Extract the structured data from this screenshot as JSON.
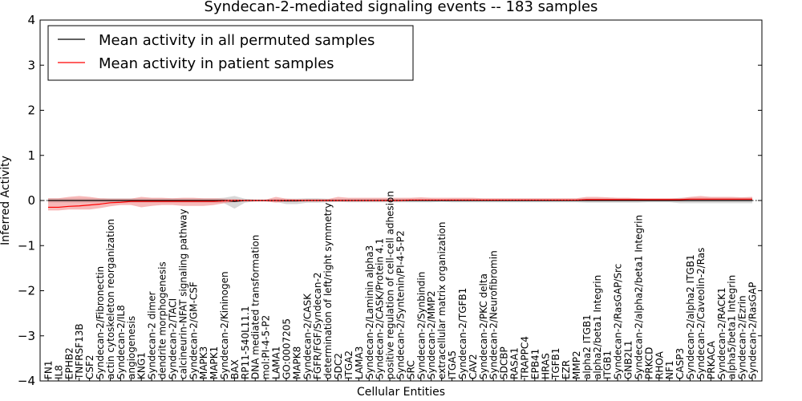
{
  "chart_data": {
    "type": "line",
    "title": "Syndecan-2-mediated signaling events -- 183 samples",
    "xlabel": "Cellular Entities",
    "ylabel": "Inferred Activity",
    "ylim": [
      -4,
      4
    ],
    "yticks": [
      "−4",
      "−3",
      "−2",
      "−1",
      "0",
      "1",
      "2",
      "3",
      "4"
    ],
    "ytick_values": [
      -4,
      -3,
      -2,
      -1,
      0,
      1,
      2,
      3,
      4
    ],
    "legend": {
      "location": "upper-left",
      "entries": [
        {
          "label": "Mean activity in all permuted samples",
          "color": "#000000"
        },
        {
          "label": "Mean activity in patient samples",
          "color": "#ff0000"
        }
      ]
    },
    "categories": [
      "FN1",
      "IL8",
      "EPHB2",
      "TNFRSF13B",
      "CSF2",
      "Syndecan-2/Fibronectin",
      "actin cytoskeleton reorganization",
      "Syndecan-2/IL8",
      "angiogenesis",
      "KNG1",
      "Syndecan-2 dimer",
      "dendrite morphogenesis",
      "Syndecan-2/TACI",
      "calcineurin-NFAT signaling pathway",
      "Syndecan-2/GM-CSF",
      "MAPK3",
      "MAPK1",
      "Syndecan-2/Kininogen",
      "BAX",
      "RP11-540L11.1",
      "DNA mediated transformation",
      "mol:PI-4-5-P2",
      "LAMA1",
      "GO:0007205",
      "MAPK8",
      "Syndecan-2/CASK",
      "FGFR/FGF/Syndecan-2",
      "determination of left/right symmetry",
      "SDC2",
      "ITGA2",
      "LAMA3",
      "Syndecan-2/Laminin alpha3",
      "Syndecan-2/CASK/Protein 4.1",
      "positive regulation of cell-cell adhesion",
      "Syndecan-2/Syntenin/PI-4-5-P2",
      "SRC",
      "Syndecan-2/Synbindin",
      "Syndecan-2/MMP2",
      "extracellular matrix organization",
      "ITGA5",
      "Syndecan-2/TGFB1",
      "CAV2",
      "Syndecan-2/PKC delta",
      "Syndecan-2/Neurofibromin",
      "SDCBP",
      "RASA1",
      "TRAPPC4",
      "EPB41",
      "HRAS",
      "TGFB1",
      "EZR",
      "MMP2",
      "alpha2 ITGB1",
      "alpha2/beta1 Integrin",
      "ITGB1",
      "Syndecan-2/RasGAP/Src",
      "GNB2L1",
      "Syndecan-2/alpha2/beta1 Integrin",
      "PRKCD",
      "RHOA",
      "NF1",
      "CASP3",
      "Syndecan-2/alpha2 ITGB1",
      "Syndecan-2/Caveolin-2/Ras",
      "PRKACA",
      "Syndecan-2/RACK1",
      "alpha5/beta1 Integrin",
      "Syndecan-2/Ezrin",
      "Syndecan-2/RasGAP"
    ],
    "series": [
      {
        "name": "Mean activity in all permuted samples",
        "color": "#000000",
        "values": [
          0.0,
          0.0,
          0.0,
          0.0,
          0.0,
          0.0,
          0.0,
          0.0,
          0.0,
          0.0,
          0.0,
          0.0,
          0.0,
          0.0,
          0.0,
          0.0,
          0.0,
          0.0,
          -0.02,
          0.0,
          0.0,
          0.0,
          0.0,
          -0.01,
          -0.01,
          0.0,
          0.0,
          0.0,
          0.0,
          0.0,
          0.0,
          0.0,
          0.0,
          0.0,
          0.0,
          0.0,
          0.0,
          0.0,
          0.0,
          0.0,
          0.0,
          0.0,
          0.0,
          0.0,
          0.0,
          0.0,
          0.0,
          0.0,
          0.0,
          0.0,
          0.0,
          0.0,
          0.0,
          0.0,
          0.0,
          0.0,
          0.0,
          0.0,
          0.0,
          0.0,
          0.0,
          0.0,
          0.0,
          0.0,
          0.0,
          0.0,
          0.0,
          0.0,
          0.0
        ],
        "band_low": [
          -0.05,
          -0.05,
          -0.05,
          -0.05,
          -0.05,
          -0.05,
          -0.05,
          -0.05,
          -0.05,
          -0.05,
          -0.05,
          -0.05,
          -0.05,
          -0.05,
          -0.05,
          -0.05,
          -0.05,
          -0.06,
          -0.18,
          -0.05,
          -0.02,
          -0.02,
          -0.03,
          -0.08,
          -0.08,
          -0.05,
          -0.05,
          -0.04,
          -0.03,
          -0.04,
          -0.04,
          -0.04,
          -0.04,
          -0.04,
          -0.04,
          -0.04,
          -0.04,
          -0.04,
          -0.03,
          -0.04,
          -0.04,
          -0.04,
          -0.04,
          -0.04,
          -0.04,
          -0.04,
          -0.04,
          -0.04,
          -0.04,
          -0.04,
          -0.04,
          -0.04,
          -0.05,
          -0.05,
          -0.05,
          -0.05,
          -0.05,
          -0.05,
          -0.04,
          -0.04,
          -0.04,
          -0.06,
          -0.06,
          -0.06,
          -0.06,
          -0.06,
          -0.06,
          -0.06,
          -0.06
        ],
        "band_high": [
          0.05,
          0.05,
          0.05,
          0.05,
          0.05,
          0.05,
          0.05,
          0.05,
          0.05,
          0.05,
          0.05,
          0.05,
          0.05,
          0.05,
          0.05,
          0.05,
          0.05,
          0.06,
          0.1,
          0.04,
          0.02,
          0.02,
          0.03,
          0.04,
          0.04,
          0.05,
          0.05,
          0.04,
          0.03,
          0.04,
          0.04,
          0.04,
          0.04,
          0.04,
          0.04,
          0.04,
          0.04,
          0.04,
          0.03,
          0.04,
          0.04,
          0.04,
          0.04,
          0.04,
          0.04,
          0.04,
          0.04,
          0.04,
          0.04,
          0.04,
          0.04,
          0.04,
          0.05,
          0.05,
          0.05,
          0.05,
          0.05,
          0.05,
          0.04,
          0.04,
          0.04,
          0.06,
          0.06,
          0.06,
          0.06,
          0.06,
          0.06,
          0.06,
          0.06
        ]
      },
      {
        "name": "Mean activity in patient samples",
        "color": "#ff0000",
        "values": [
          -0.15,
          -0.15,
          -0.13,
          -0.12,
          -0.1,
          -0.08,
          -0.05,
          -0.04,
          -0.02,
          -0.02,
          -0.02,
          -0.02,
          -0.02,
          -0.02,
          -0.02,
          -0.02,
          -0.02,
          -0.01,
          0.0,
          0.0,
          0.0,
          0.0,
          0.0,
          0.0,
          0.0,
          0.0,
          0.0,
          0.0,
          0.0,
          0.0,
          0.0,
          0.0,
          0.0,
          0.0,
          0.0,
          0.01,
          0.01,
          0.01,
          0.01,
          0.01,
          0.01,
          0.01,
          0.01,
          0.01,
          0.01,
          0.01,
          0.01,
          0.01,
          0.01,
          0.01,
          0.01,
          0.01,
          0.02,
          0.02,
          0.02,
          0.02,
          0.02,
          0.02,
          0.02,
          0.02,
          0.02,
          0.02,
          0.03,
          0.03,
          0.03,
          0.03,
          0.03,
          0.03,
          0.03
        ],
        "band_low": [
          -0.22,
          -0.22,
          -0.2,
          -0.2,
          -0.2,
          -0.17,
          -0.13,
          -0.1,
          -0.1,
          -0.15,
          -0.12,
          -0.1,
          -0.1,
          -0.12,
          -0.12,
          -0.12,
          -0.1,
          -0.06,
          -0.03,
          -0.02,
          -0.02,
          -0.02,
          -0.05,
          -0.02,
          -0.02,
          -0.02,
          -0.02,
          -0.02,
          -0.02,
          -0.02,
          -0.02,
          -0.02,
          -0.02,
          -0.02,
          -0.02,
          -0.01,
          -0.01,
          -0.01,
          -0.01,
          -0.01,
          -0.01,
          -0.01,
          -0.01,
          -0.01,
          -0.01,
          -0.01,
          -0.01,
          -0.01,
          -0.01,
          -0.01,
          -0.01,
          -0.01,
          -0.01,
          -0.01,
          -0.01,
          -0.01,
          -0.01,
          -0.01,
          -0.01,
          -0.01,
          -0.01,
          -0.01,
          -0.01,
          -0.01,
          -0.01,
          -0.01,
          -0.01,
          -0.01,
          -0.01
        ],
        "band_high": [
          0.05,
          0.05,
          0.08,
          0.1,
          0.08,
          0.05,
          0.04,
          0.04,
          0.04,
          0.08,
          0.06,
          0.06,
          0.05,
          0.06,
          0.06,
          0.05,
          0.05,
          0.04,
          0.03,
          0.02,
          0.02,
          0.02,
          0.08,
          0.04,
          0.03,
          0.03,
          0.03,
          0.03,
          0.08,
          0.06,
          0.06,
          0.06,
          0.06,
          0.06,
          0.06,
          0.06,
          0.07,
          0.06,
          0.06,
          0.06,
          0.06,
          0.06,
          0.05,
          0.05,
          0.05,
          0.05,
          0.05,
          0.05,
          0.05,
          0.05,
          0.05,
          0.05,
          0.08,
          0.08,
          0.07,
          0.06,
          0.06,
          0.05,
          0.05,
          0.05,
          0.05,
          0.05,
          0.08,
          0.1,
          0.08,
          0.08,
          0.08,
          0.07,
          0.08
        ]
      }
    ]
  }
}
